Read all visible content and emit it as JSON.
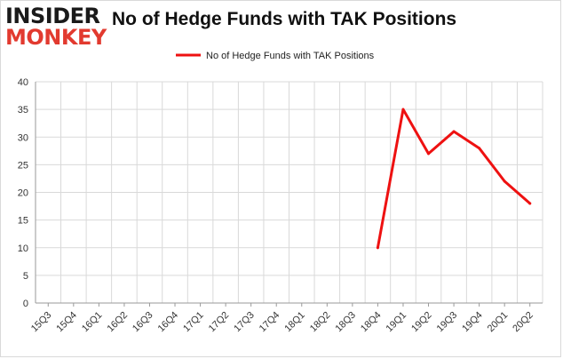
{
  "logo": {
    "line1": "INSIDER",
    "line2": "MONKEY"
  },
  "chart_data": {
    "type": "line",
    "title": "No of Hedge Funds with TAK Positions",
    "xlabel": "",
    "ylabel": "",
    "categories": [
      "15Q3",
      "15Q4",
      "16Q1",
      "16Q2",
      "16Q3",
      "16Q4",
      "17Q1",
      "17Q2",
      "17Q3",
      "17Q4",
      "18Q1",
      "18Q2",
      "18Q3",
      "18Q4",
      "19Q1",
      "19Q2",
      "19Q3",
      "19Q4",
      "20Q1",
      "20Q2"
    ],
    "series": [
      {
        "name": "No of Hedge Funds with TAK Positions",
        "color": "#ee1111",
        "values": [
          null,
          null,
          null,
          null,
          null,
          null,
          null,
          null,
          null,
          null,
          null,
          null,
          null,
          10,
          35,
          27,
          31,
          28,
          22,
          18
        ]
      }
    ],
    "ylim": [
      0,
      40
    ],
    "yticks": [
      0,
      5,
      10,
      15,
      20,
      25,
      30,
      35,
      40
    ],
    "grid": true,
    "legend": "top"
  }
}
